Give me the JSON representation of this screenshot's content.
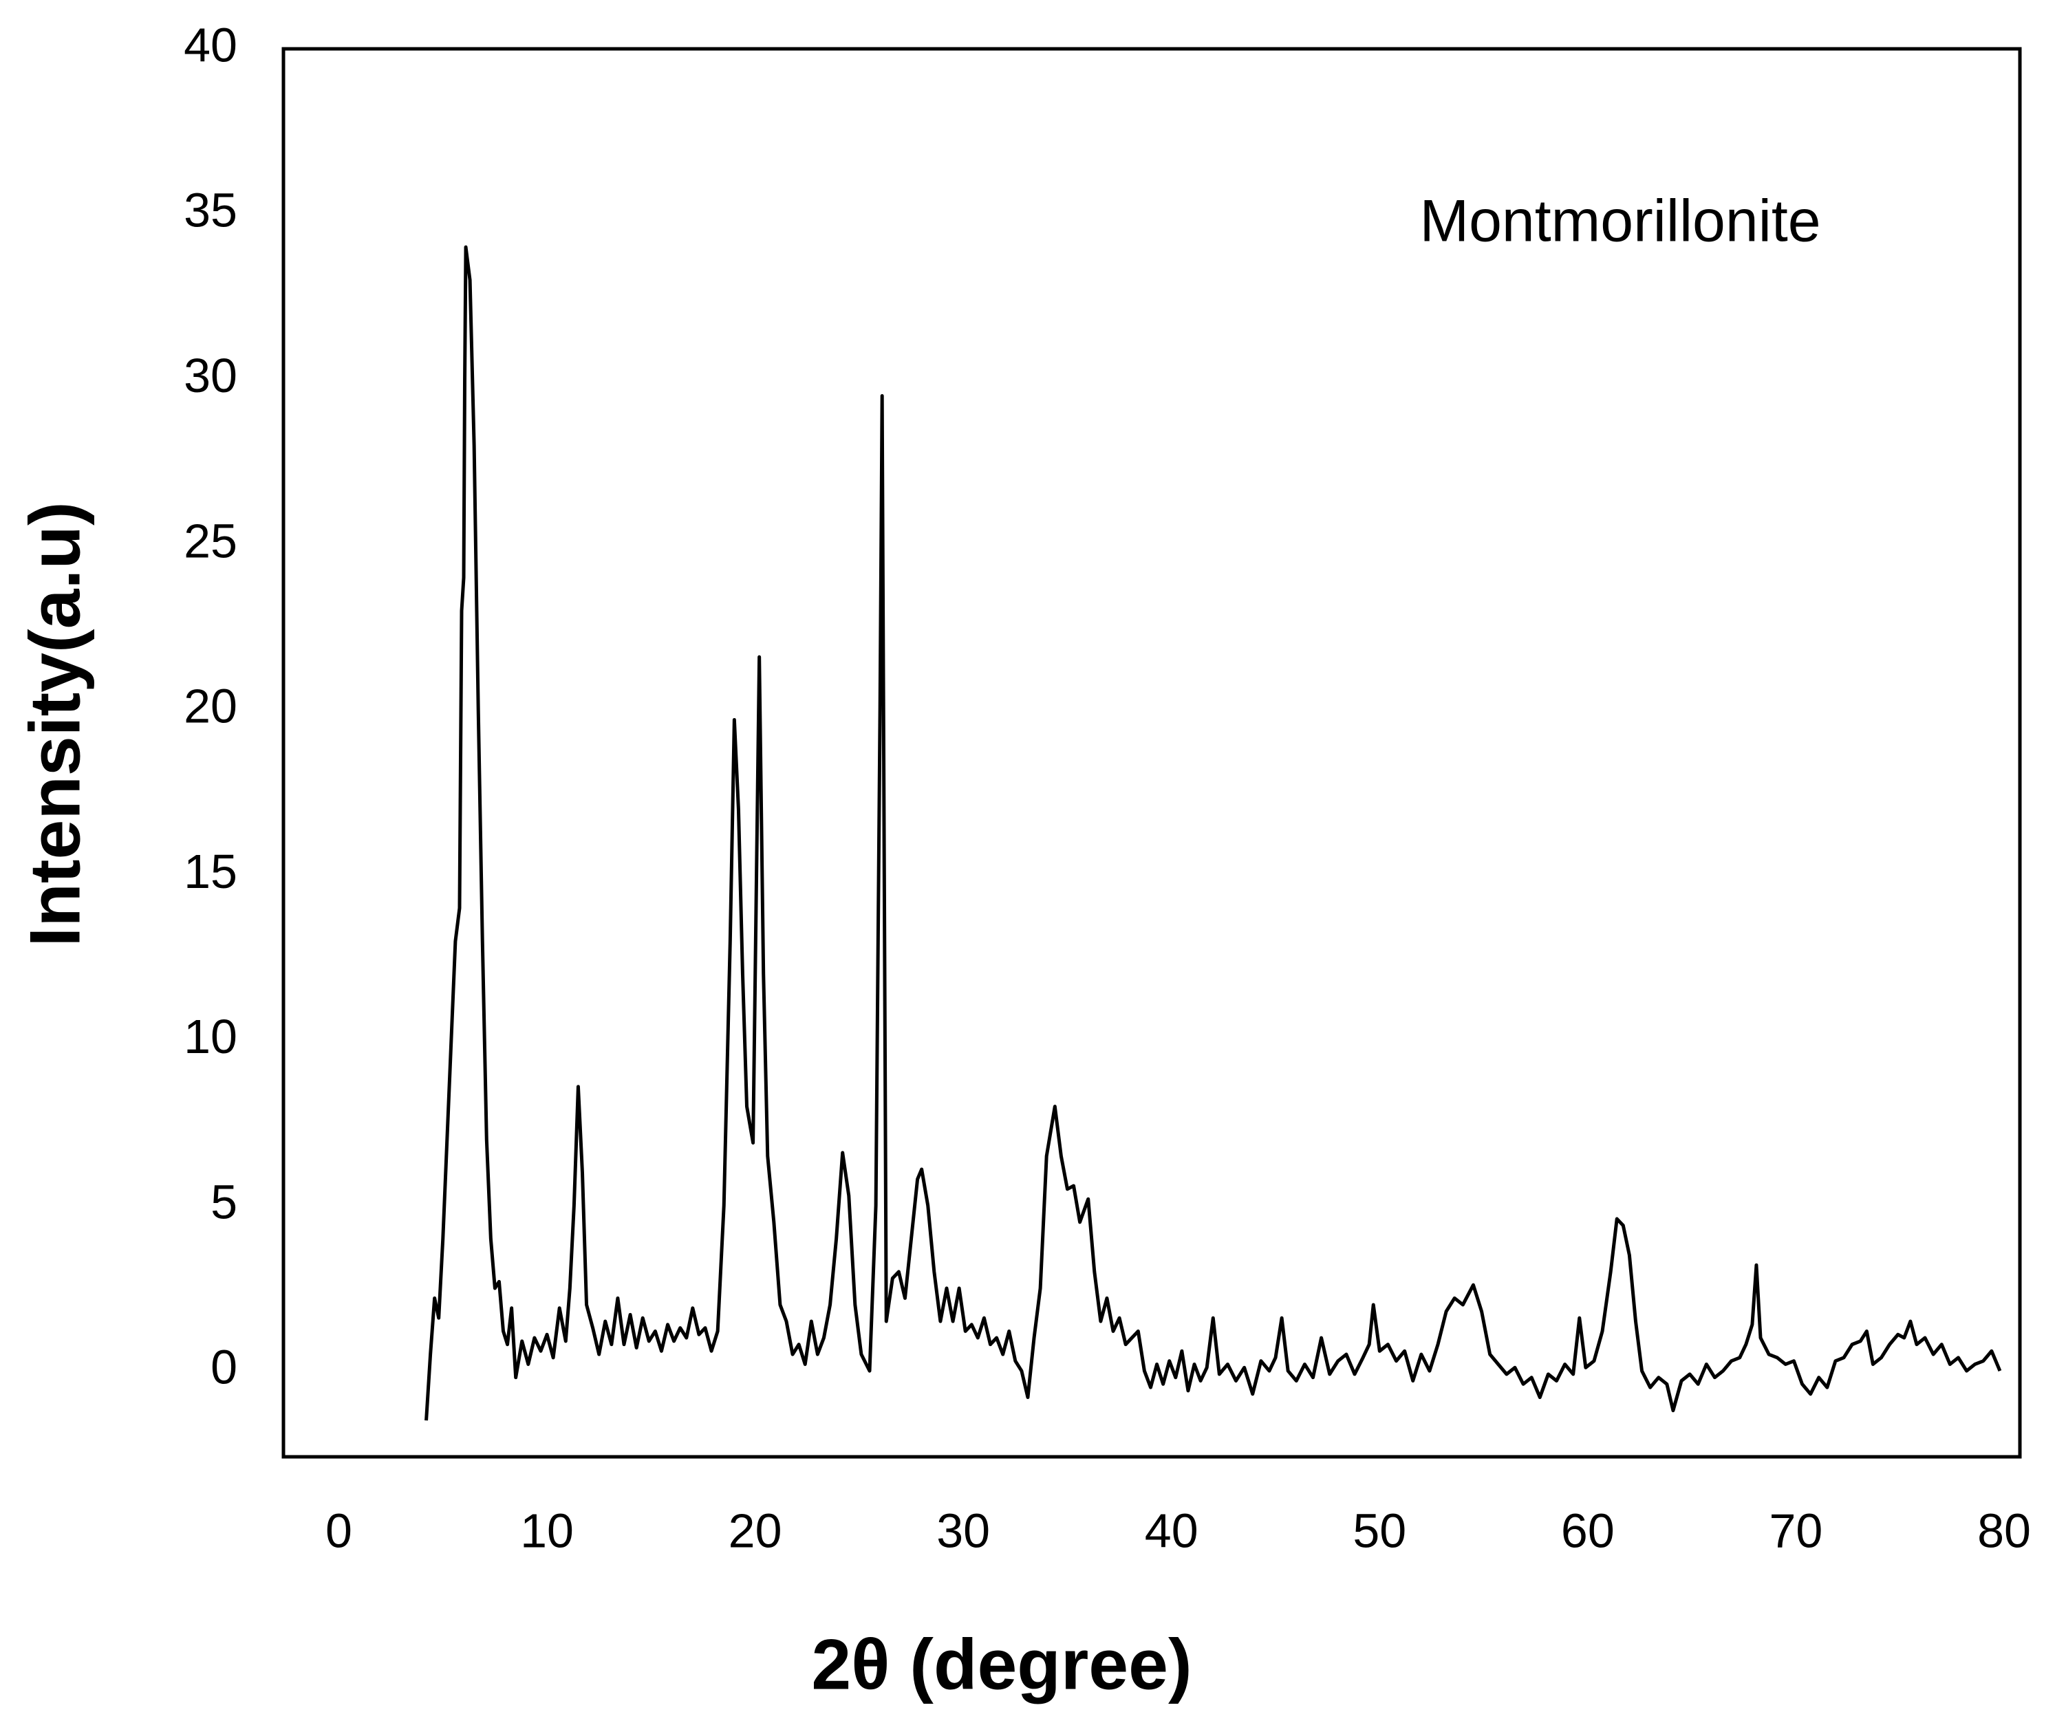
{
  "chart_data": {
    "type": "line",
    "xlabel": "2θ (degree)",
    "ylabel": "Intensity(a.u)",
    "annotation": "Montmorillonite",
    "color": "#000000",
    "xlim": [
      -2.66,
      80.76
    ],
    "ylim": [
      -2.6,
      40
    ],
    "xticks": [
      0,
      10,
      20,
      30,
      40,
      50,
      60,
      70,
      80
    ],
    "yticks": [
      0,
      5,
      10,
      15,
      20,
      25,
      30,
      35,
      40
    ],
    "x": [
      4.2,
      4.4,
      4.6,
      4.8,
      5.0,
      5.2,
      5.4,
      5.6,
      5.8,
      5.9,
      6.0,
      6.05,
      6.1,
      6.3,
      6.5,
      6.7,
      6.9,
      7.1,
      7.3,
      7.5,
      7.7,
      7.9,
      8.1,
      8.3,
      8.5,
      8.8,
      9.1,
      9.4,
      9.7,
      10.0,
      10.3,
      10.6,
      10.9,
      11.1,
      11.3,
      11.5,
      11.7,
      11.9,
      12.2,
      12.5,
      12.8,
      13.1,
      13.4,
      13.7,
      14.0,
      14.3,
      14.6,
      14.9,
      15.2,
      15.5,
      15.8,
      16.1,
      16.4,
      16.7,
      17.0,
      17.3,
      17.6,
      17.9,
      18.2,
      18.5,
      18.8,
      19.0,
      19.2,
      19.4,
      19.6,
      19.9,
      20.2,
      20.4,
      20.6,
      20.9,
      21.2,
      21.5,
      21.8,
      22.1,
      22.4,
      22.7,
      23.0,
      23.3,
      23.6,
      23.9,
      24.2,
      24.5,
      24.8,
      25.1,
      25.5,
      25.8,
      26.0,
      26.1,
      26.3,
      26.6,
      26.9,
      27.2,
      27.5,
      27.8,
      28.0,
      28.3,
      28.6,
      28.9,
      29.2,
      29.5,
      29.8,
      30.1,
      30.4,
      30.7,
      31.0,
      31.3,
      31.6,
      31.9,
      32.2,
      32.5,
      32.8,
      33.1,
      33.4,
      33.7,
      34.0,
      34.4,
      34.7,
      35.0,
      35.3,
      35.6,
      36.0,
      36.3,
      36.6,
      36.9,
      37.2,
      37.5,
      37.8,
      38.1,
      38.4,
      38.7,
      39.0,
      39.3,
      39.6,
      39.9,
      40.2,
      40.5,
      40.8,
      41.1,
      41.4,
      41.7,
      42.0,
      42.3,
      42.7,
      43.1,
      43.5,
      43.9,
      44.3,
      44.7,
      45.0,
      45.3,
      45.6,
      46.0,
      46.4,
      46.8,
      47.2,
      47.6,
      48.0,
      48.4,
      48.8,
      49.2,
      49.5,
      49.7,
      50.0,
      50.4,
      50.8,
      51.2,
      51.6,
      52.0,
      52.4,
      52.8,
      53.2,
      53.6,
      54.0,
      54.5,
      54.9,
      55.3,
      55.7,
      56.1,
      56.5,
      56.9,
      57.3,
      57.7,
      58.1,
      58.5,
      58.9,
      59.3,
      59.6,
      59.9,
      60.3,
      60.7,
      61.1,
      61.4,
      61.7,
      62.0,
      62.3,
      62.6,
      63.0,
      63.4,
      63.8,
      64.1,
      64.5,
      64.9,
      65.3,
      65.7,
      66.1,
      66.5,
      66.9,
      67.3,
      67.6,
      67.9,
      68.1,
      68.3,
      68.7,
      69.1,
      69.5,
      69.9,
      70.3,
      70.7,
      71.1,
      71.5,
      71.9,
      72.3,
      72.7,
      73.1,
      73.4,
      73.7,
      74.1,
      74.5,
      74.9,
      75.2,
      75.5,
      75.8,
      76.2,
      76.6,
      77.0,
      77.4,
      77.8,
      78.2,
      78.6,
      79.0,
      79.4,
      79.8
    ],
    "values": [
      -1.5,
      0.5,
      2.2,
      1.6,
      4,
      7,
      10,
      13,
      14,
      23,
      24,
      30,
      34,
      33,
      28,
      20,
      13,
      7,
      4,
      2.5,
      2.7,
      1.2,
      0.8,
      1.9,
      -0.2,
      0.9,
      0.2,
      1.0,
      0.6,
      1.1,
      0.4,
      1.9,
      0.9,
      2.5,
      5,
      8.6,
      6,
      2,
      1.3,
      0.5,
      1.5,
      0.8,
      2.2,
      0.8,
      1.7,
      0.7,
      1.6,
      0.9,
      1.2,
      0.6,
      1.4,
      0.9,
      1.3,
      1.0,
      1.9,
      1.1,
      1.3,
      0.6,
      1.2,
      5,
      13,
      19.7,
      17,
      12,
      8,
      6.9,
      21.6,
      12,
      6.5,
      4.5,
      2,
      1.5,
      0.5,
      0.8,
      0.2,
      1.5,
      0.5,
      1.0,
      2,
      4,
      6.6,
      5.3,
      2,
      0.5,
      0.0,
      5,
      20,
      29.5,
      1.5,
      2.8,
      3.0,
      2.2,
      4,
      5.8,
      6.1,
      5,
      3,
      1.5,
      2.5,
      1.5,
      2.5,
      1.2,
      1.4,
      1.0,
      1.6,
      0.8,
      1.0,
      0.5,
      1.2,
      0.3,
      0.0,
      -0.8,
      1.0,
      2.5,
      6.5,
      8.0,
      6.5,
      5.5,
      5.6,
      4.5,
      5.2,
      3,
      1.5,
      2.2,
      1.2,
      1.6,
      0.8,
      1.0,
      1.2,
      0.0,
      -0.5,
      0.2,
      -0.4,
      0.3,
      -0.2,
      0.6,
      -0.6,
      0.2,
      -0.3,
      0.1,
      1.6,
      -0.1,
      0.2,
      -0.3,
      0.1,
      -0.7,
      0.3,
      0.0,
      0.4,
      1.6,
      0.0,
      -0.3,
      0.2,
      -0.2,
      1.0,
      -0.1,
      0.3,
      0.5,
      -0.1,
      0.4,
      0.8,
      2.0,
      0.6,
      0.8,
      0.3,
      0.6,
      -0.3,
      0.5,
      0.0,
      0.8,
      1.8,
      2.2,
      2.0,
      2.6,
      1.8,
      0.5,
      0.2,
      -0.1,
      0.1,
      -0.4,
      -0.2,
      -0.8,
      -0.1,
      -0.3,
      0.2,
      -0.1,
      1.6,
      0.1,
      0.3,
      1.2,
      3,
      4.6,
      4.4,
      3.5,
      1.5,
      0.0,
      -0.5,
      -0.2,
      -0.4,
      -1.2,
      -0.3,
      -0.1,
      -0.4,
      0.2,
      -0.2,
      0.0,
      0.3,
      0.4,
      0.8,
      1.4,
      3.2,
      1.0,
      0.5,
      0.4,
      0.2,
      0.3,
      -0.4,
      -0.7,
      -0.2,
      -0.5,
      0.3,
      0.4,
      0.8,
      0.9,
      1.2,
      0.2,
      0.4,
      0.8,
      1.1,
      1.0,
      1.5,
      0.8,
      1.0,
      0.5,
      0.8,
      0.2,
      0.4,
      0.0,
      0.2,
      0.3,
      0.6,
      0.0
    ]
  }
}
